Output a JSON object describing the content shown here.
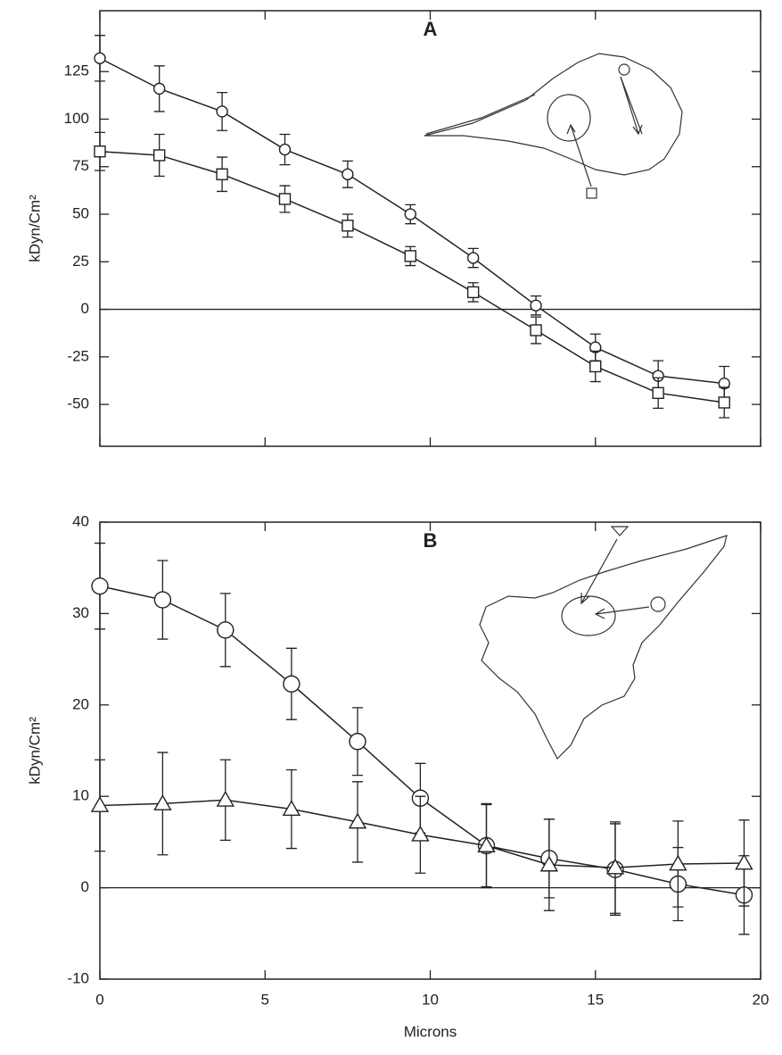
{
  "chart_data": [
    {
      "type": "line",
      "annotation": "A",
      "y_label": "kDyn/Cm²",
      "x": [
        0,
        1.8,
        3.7,
        5.6,
        7.5,
        9.4,
        11.3,
        13.2,
        15.0,
        16.9,
        18.9
      ],
      "xlim": [
        0,
        20
      ],
      "xticks": [
        0,
        5,
        10,
        15,
        20
      ],
      "show_xtick_labels": false,
      "ylim": [
        -72,
        157
      ],
      "yticks": [
        -50,
        -25,
        0,
        25,
        50,
        75,
        100,
        125
      ],
      "zero_line": true,
      "series": [
        {
          "marker": "circle",
          "color": "#222",
          "values": [
            132,
            116,
            104,
            84,
            71,
            50,
            27,
            2,
            -20,
            -35,
            -39
          ],
          "errors": [
            12,
            12,
            10,
            8,
            7,
            5,
            5,
            5,
            7,
            8,
            9
          ]
        },
        {
          "marker": "square",
          "color": "#222",
          "values": [
            83,
            81,
            71,
            58,
            44,
            28,
            9,
            -11,
            -30,
            -44,
            -49
          ],
          "errors": [
            10,
            11,
            9,
            7,
            6,
            5,
            5,
            7,
            8,
            8,
            8
          ]
        }
      ]
    },
    {
      "type": "line",
      "annotation": "B",
      "y_label": "kDyn/Cm²",
      "x_label": "Microns",
      "x": [
        0,
        1.9,
        3.8,
        5.8,
        7.8,
        9.7,
        11.7,
        13.6,
        15.6,
        17.5,
        19.5
      ],
      "xlim": [
        0,
        20
      ],
      "xticks": [
        0,
        5,
        10,
        15,
        20
      ],
      "show_xtick_labels": true,
      "ylim": [
        -10,
        40
      ],
      "yticks": [
        -10,
        0,
        10,
        20,
        30,
        40
      ],
      "zero_line": true,
      "series": [
        {
          "marker": "circle",
          "color": "#222",
          "values": [
            33,
            31.5,
            28.2,
            22.3,
            16,
            9.8,
            4.6,
            3.2,
            2.0,
            0.4,
            -0.8
          ],
          "errors": [
            4.7,
            4.3,
            4,
            3.9,
            3.7,
            3.8,
            4.5,
            4.3,
            5,
            4,
            4.3
          ]
        },
        {
          "marker": "triangle",
          "color": "#222",
          "values": [
            9,
            9.2,
            9.6,
            8.6,
            7.2,
            5.8,
            4.6,
            2.5,
            2.2,
            2.6,
            2.7
          ],
          "errors": [
            5,
            5.6,
            4.4,
            4.3,
            4.4,
            4.2,
            4.6,
            5,
            5,
            4.7,
            4.7
          ]
        }
      ]
    }
  ]
}
